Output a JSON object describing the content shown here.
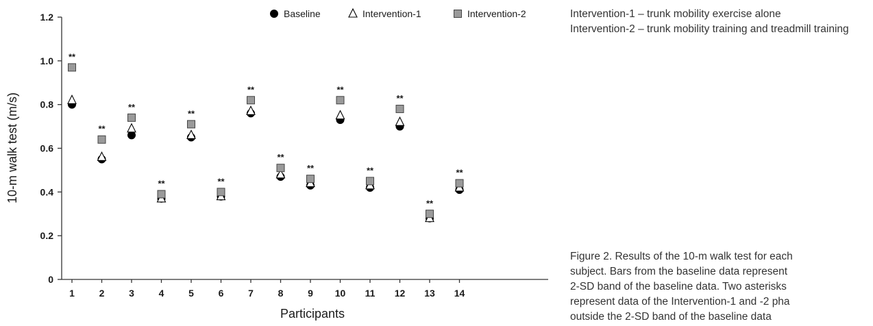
{
  "chart_data": {
    "type": "scatter",
    "xlabel": "Participants",
    "ylabel": "10-m walk test (m/s)",
    "categories": [
      "1",
      "2",
      "3",
      "4",
      "5",
      "6",
      "7",
      "8",
      "9",
      "10",
      "11",
      "12",
      "13",
      "14"
    ],
    "ylim": [
      0,
      1.2
    ],
    "yticks": [
      "0",
      "0.2",
      "0.4",
      "0.6",
      "0.8",
      "1.0",
      "1.2"
    ],
    "grid": false,
    "legend_position": "top-right",
    "series": [
      {
        "name": "Baseline",
        "marker": "circle",
        "color": "#000000",
        "values": [
          0.8,
          0.55,
          0.66,
          0.37,
          0.65,
          0.38,
          0.76,
          0.47,
          0.43,
          0.73,
          0.42,
          0.7,
          0.28,
          0.41
        ]
      },
      {
        "name": "Intervention-1",
        "marker": "triangle",
        "color": "#ffffff",
        "values": [
          0.82,
          0.56,
          0.69,
          0.37,
          0.66,
          0.38,
          0.77,
          0.48,
          0.44,
          0.75,
          0.43,
          0.72,
          0.28,
          0.42
        ]
      },
      {
        "name": "Intervention-2",
        "marker": "square",
        "color": "#9a9a9a",
        "values": [
          0.97,
          0.64,
          0.74,
          0.39,
          0.71,
          0.4,
          0.82,
          0.51,
          0.46,
          0.82,
          0.45,
          0.78,
          0.3,
          0.44
        ]
      }
    ],
    "significance_label": "**",
    "significant": [
      1,
      2,
      3,
      4,
      5,
      6,
      7,
      8,
      9,
      10,
      11,
      12,
      13,
      14
    ]
  },
  "notes": [
    "Intervention-1 – trunk mobility exercise alone",
    "Intervention-2 – trunk mobility training and treadmill training"
  ],
  "caption": "Figure 2. Results of the 10-m walk test for each\nsubject. Bars from the baseline data represent\n2-SD band of the baseline data. Two asterisks\nrepresent data of the Intervention-1 and -2 pha\noutside the 2-SD band of the baseline data"
}
